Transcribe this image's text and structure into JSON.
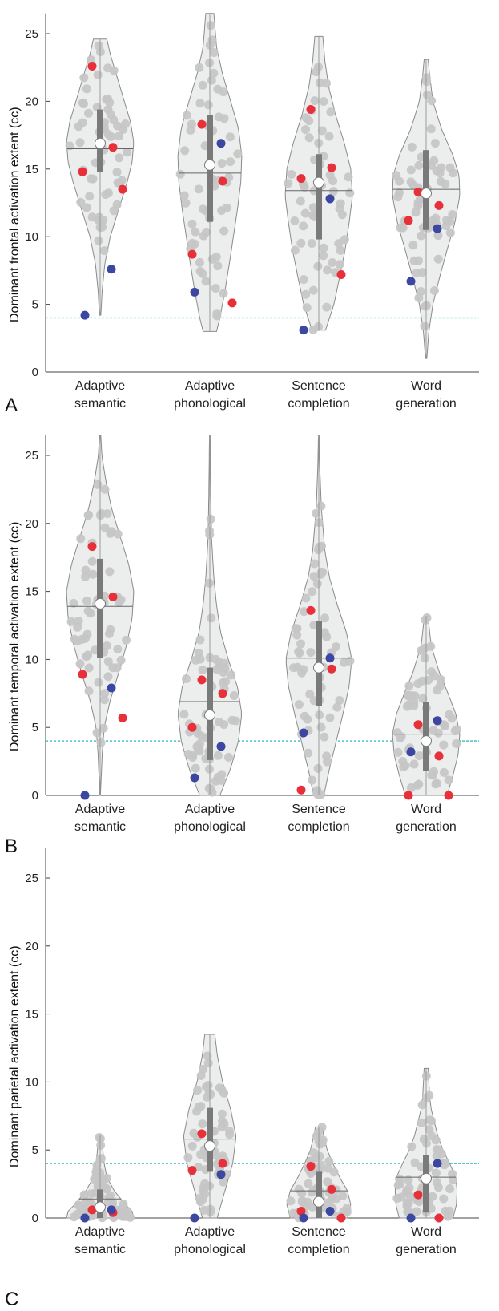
{
  "chart_data": [
    {
      "panel": "A",
      "type": "violin",
      "ylabel": "Dominant frontal activation extent (cc)",
      "categories": [
        "Adaptive semantic",
        "Adaptive phonological",
        "Sentence completion",
        "Word generation"
      ],
      "ylim": [
        0,
        26.5
      ],
      "yticks": [
        0,
        5,
        10,
        15,
        20,
        25
      ],
      "threshold": 4,
      "groups": [
        {
          "min": 4.2,
          "max": 24.6,
          "q1": 14.8,
          "median": 16.9,
          "q3": 19.4,
          "mean": 16.5,
          "width": [
            [
              4.2,
              0.02
            ],
            [
              6,
              0.06
            ],
            [
              8,
              0.14
            ],
            [
              10,
              0.3
            ],
            [
              12,
              0.55
            ],
            [
              14,
              0.8
            ],
            [
              15.5,
              0.95
            ],
            [
              17,
              1.0
            ],
            [
              18.5,
              0.9
            ],
            [
              20,
              0.72
            ],
            [
              22,
              0.48
            ],
            [
              23.5,
              0.3
            ],
            [
              24.6,
              0.2
            ]
          ],
          "red": [
            22.6,
            16.6,
            14.8,
            13.5
          ],
          "blue": [
            7.6,
            4.2
          ]
        },
        {
          "min": 3.0,
          "max": 26.5,
          "q1": 11.1,
          "median": 15.3,
          "q3": 19.0,
          "mean": 14.7,
          "width": [
            [
              3,
              0.2
            ],
            [
              4,
              0.3
            ],
            [
              6,
              0.45
            ],
            [
              8,
              0.58
            ],
            [
              10,
              0.7
            ],
            [
              12,
              0.82
            ],
            [
              14,
              0.92
            ],
            [
              16,
              0.95
            ],
            [
              18,
              0.85
            ],
            [
              20,
              0.62
            ],
            [
              22,
              0.38
            ],
            [
              24,
              0.2
            ],
            [
              26.5,
              0.12
            ]
          ],
          "red": [
            18.3,
            14.1,
            8.7,
            5.1
          ],
          "blue": [
            16.9,
            5.9
          ]
        },
        {
          "min": 3.1,
          "max": 24.8,
          "q1": 9.8,
          "median": 14.0,
          "q3": 16.1,
          "mean": 13.4,
          "width": [
            [
              3.1,
              0.2
            ],
            [
              5,
              0.45
            ],
            [
              7,
              0.62
            ],
            [
              9,
              0.78
            ],
            [
              11,
              0.9
            ],
            [
              13,
              1.0
            ],
            [
              15,
              0.95
            ],
            [
              17,
              0.75
            ],
            [
              19,
              0.5
            ],
            [
              21,
              0.3
            ],
            [
              23,
              0.18
            ],
            [
              24.8,
              0.12
            ]
          ],
          "red": [
            19.4,
            15.1,
            14.3,
            7.2
          ],
          "blue": [
            12.8,
            3.1
          ]
        },
        {
          "min": 1.0,
          "max": 23.1,
          "q1": 10.5,
          "median": 13.2,
          "q3": 16.4,
          "mean": 13.5,
          "width": [
            [
              1,
              0.02
            ],
            [
              3,
              0.08
            ],
            [
              5,
              0.2
            ],
            [
              7,
              0.4
            ],
            [
              9,
              0.62
            ],
            [
              11,
              0.85
            ],
            [
              13,
              1.0
            ],
            [
              14.5,
              0.98
            ],
            [
              16,
              0.8
            ],
            [
              18,
              0.45
            ],
            [
              20,
              0.2
            ],
            [
              22,
              0.1
            ],
            [
              23.1,
              0.06
            ]
          ],
          "red": [
            13.3,
            12.3,
            11.2
          ],
          "blue": [
            10.6,
            6.7
          ]
        }
      ]
    },
    {
      "panel": "B",
      "type": "violin",
      "ylabel": "Dominant temporal activation extent (cc)",
      "categories": [
        "Adaptive semantic",
        "Adaptive phonological",
        "Sentence completion",
        "Word generation"
      ],
      "ylim": [
        0,
        26.5
      ],
      "yticks": [
        0,
        5,
        10,
        15,
        20,
        25
      ],
      "threshold": 4,
      "groups": [
        {
          "min": 0.0,
          "max": 26.5,
          "q1": 10.1,
          "median": 14.1,
          "q3": 17.4,
          "mean": 13.9,
          "width": [
            [
              0,
              0.01
            ],
            [
              3,
              0.06
            ],
            [
              5,
              0.12
            ],
            [
              7,
              0.3
            ],
            [
              9,
              0.55
            ],
            [
              11,
              0.78
            ],
            [
              13,
              0.95
            ],
            [
              15,
              1.0
            ],
            [
              17,
              0.85
            ],
            [
              19,
              0.6
            ],
            [
              21,
              0.35
            ],
            [
              23,
              0.18
            ],
            [
              25,
              0.05
            ],
            [
              26.5,
              0.02
            ]
          ],
          "red": [
            18.3,
            14.6,
            8.9,
            5.7
          ],
          "blue": [
            7.9,
            0.0
          ]
        },
        {
          "min": 0.0,
          "max": 26.5,
          "q1": 2.6,
          "median": 5.9,
          "q3": 9.4,
          "mean": 6.9,
          "width": [
            [
              0,
              0.3
            ],
            [
              2,
              0.62
            ],
            [
              4,
              0.85
            ],
            [
              6,
              0.95
            ],
            [
              8,
              0.82
            ],
            [
              10,
              0.55
            ],
            [
              12,
              0.32
            ],
            [
              14,
              0.2
            ],
            [
              16,
              0.12
            ],
            [
              19,
              0.05
            ],
            [
              22,
              0.03
            ],
            [
              26.5,
              0.01
            ]
          ],
          "red": [
            8.5,
            7.5,
            5.0
          ],
          "blue": [
            3.6,
            1.3
          ]
        },
        {
          "min": 0.0,
          "max": 26.5,
          "q1": 6.6,
          "median": 9.4,
          "q3": 12.8,
          "mean": 10.1,
          "width": [
            [
              0,
              0.15
            ],
            [
              2,
              0.32
            ],
            [
              4,
              0.52
            ],
            [
              6,
              0.72
            ],
            [
              8,
              0.9
            ],
            [
              10,
              0.98
            ],
            [
              12,
              0.82
            ],
            [
              14,
              0.55
            ],
            [
              16,
              0.32
            ],
            [
              18,
              0.18
            ],
            [
              21,
              0.08
            ],
            [
              24,
              0.03
            ],
            [
              26.5,
              0.01
            ]
          ],
          "red": [
            13.6,
            9.3,
            0.4
          ],
          "blue": [
            10.1,
            4.6
          ]
        },
        {
          "min": 0.0,
          "max": 13.2,
          "q1": 1.8,
          "median": 4.0,
          "q3": 6.9,
          "mean": 4.5,
          "width": [
            [
              0,
              0.62
            ],
            [
              1.5,
              0.8
            ],
            [
              3,
              0.95
            ],
            [
              4.5,
              1.0
            ],
            [
              6,
              0.88
            ],
            [
              7.5,
              0.65
            ],
            [
              9,
              0.4
            ],
            [
              11,
              0.15
            ],
            [
              13.2,
              0.05
            ]
          ],
          "red": [
            5.2,
            2.9,
            0.0,
            0.0
          ],
          "blue": [
            5.5,
            3.2
          ]
        }
      ]
    },
    {
      "panel": "C",
      "type": "violin",
      "ylabel": "Dominant parietal activation extent (cc)",
      "categories": [
        "Adaptive semantic",
        "Adaptive phonological",
        "Sentence completion",
        "Word generation"
      ],
      "ylim": [
        0,
        27.2
      ],
      "yticks": [
        0,
        5,
        10,
        15,
        20,
        25
      ],
      "threshold": 4,
      "groups": [
        {
          "min": 0.0,
          "max": 6.1,
          "q1": 0.0,
          "median": 0.8,
          "q3": 2.1,
          "mean": 1.4,
          "width": [
            [
              0,
              1.0
            ],
            [
              0.5,
              0.95
            ],
            [
              1,
              0.75
            ],
            [
              2,
              0.42
            ],
            [
              3,
              0.2
            ],
            [
              4,
              0.12
            ],
            [
              5,
              0.08
            ],
            [
              6.1,
              0.05
            ]
          ],
          "red": [
            0.6,
            0.4
          ],
          "blue": [
            0.6,
            0.0
          ]
        },
        {
          "min": 0.0,
          "max": 13.5,
          "q1": 3.4,
          "median": 5.3,
          "q3": 8.1,
          "mean": 5.8,
          "width": [
            [
              0,
              0.22
            ],
            [
              2,
              0.45
            ],
            [
              4,
              0.68
            ],
            [
              6,
              0.78
            ],
            [
              8,
              0.62
            ],
            [
              10,
              0.38
            ],
            [
              12,
              0.22
            ],
            [
              13.5,
              0.15
            ]
          ],
          "red": [
            6.2,
            4.0,
            3.5
          ],
          "blue": [
            3.2,
            0.0
          ]
        },
        {
          "min": 0.0,
          "max": 6.7,
          "q1": 0.0,
          "median": 1.2,
          "q3": 3.4,
          "mean": 2.0,
          "width": [
            [
              0,
              0.85
            ],
            [
              1,
              0.95
            ],
            [
              2,
              0.85
            ],
            [
              3,
              0.62
            ],
            [
              4,
              0.42
            ],
            [
              5,
              0.25
            ],
            [
              6,
              0.15
            ],
            [
              6.7,
              0.1
            ]
          ],
          "red": [
            3.8,
            2.1,
            0.5,
            0.0
          ],
          "blue": [
            0.5,
            0.0
          ]
        },
        {
          "min": 0.0,
          "max": 11.0,
          "q1": 0.4,
          "median": 2.9,
          "q3": 4.6,
          "mean": 3.0,
          "width": [
            [
              0,
              0.8
            ],
            [
              1,
              0.9
            ],
            [
              2,
              0.92
            ],
            [
              3,
              0.88
            ],
            [
              4,
              0.7
            ],
            [
              5,
              0.5
            ],
            [
              6,
              0.35
            ],
            [
              7,
              0.25
            ],
            [
              8,
              0.15
            ],
            [
              9,
              0.1
            ],
            [
              11,
              0.06
            ]
          ],
          "red": [
            1.7,
            0.0
          ],
          "blue": [
            4.0,
            0.0
          ]
        }
      ]
    }
  ],
  "colors": {
    "violin_fill": "#eceeee",
    "violin_stroke": "#8a8a8a",
    "scatter": "#c6c6c6",
    "red": "#e8303a",
    "blue": "#3b47a0",
    "box": "#7a7a7a",
    "threshold": "#28b5b5"
  }
}
